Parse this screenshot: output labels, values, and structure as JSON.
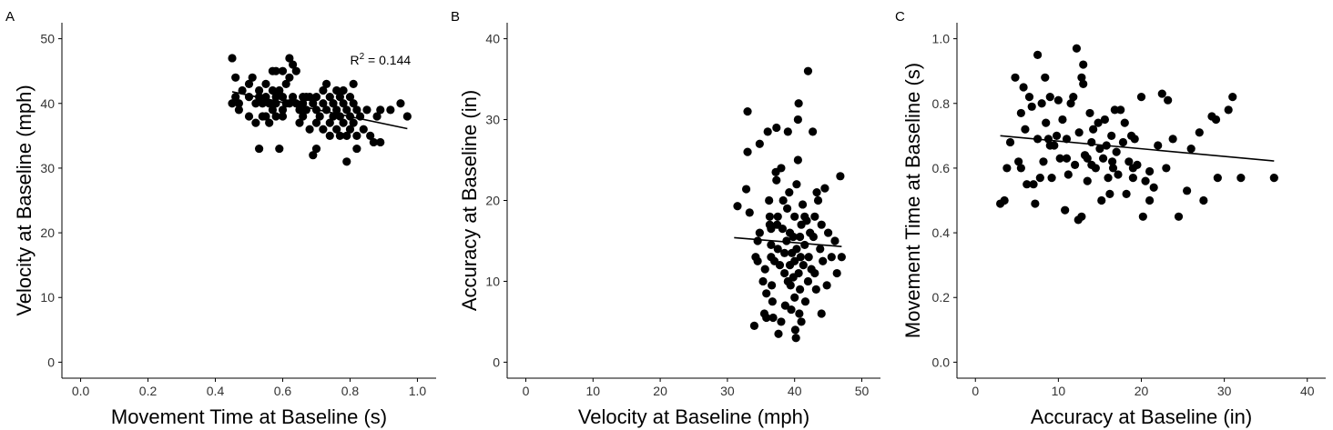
{
  "chart_data": [
    {
      "type": "scatter",
      "panel": "A",
      "xlabel": "Movement Time at Baseline (s)",
      "ylabel": "Velocity at Baseline (mph)",
      "xlim": [
        0.0,
        1.0
      ],
      "ylim": [
        0,
        50
      ],
      "xticks": [
        "0.0",
        "0.2",
        "0.4",
        "0.6",
        "0.8",
        "1.0"
      ],
      "yticks": [
        "0",
        "10",
        "20",
        "30",
        "40",
        "50"
      ],
      "annotation": {
        "base": "R",
        "sup": "2",
        "rest": " = 0.144",
        "x": 0.8,
        "y": 46
      },
      "trend": {
        "x": [
          0.45,
          0.97
        ],
        "y": [
          41.8,
          36.1
        ]
      },
      "points": [
        [
          0.45,
          47.0
        ],
        [
          0.45,
          40.0
        ],
        [
          0.46,
          44.0
        ],
        [
          0.46,
          41.0
        ],
        [
          0.47,
          39.0
        ],
        [
          0.48,
          42.0
        ],
        [
          0.5,
          41.0
        ],
        [
          0.5,
          38.0
        ],
        [
          0.5,
          43.0
        ],
        [
          0.51,
          44.0
        ],
        [
          0.52,
          40.0
        ],
        [
          0.52,
          37.0
        ],
        [
          0.53,
          42.0
        ],
        [
          0.53,
          41.0
        ],
        [
          0.53,
          33.0
        ],
        [
          0.54,
          40.0
        ],
        [
          0.55,
          43.0
        ],
        [
          0.55,
          41.0
        ],
        [
          0.55,
          38.0
        ],
        [
          0.56,
          40.0
        ],
        [
          0.56,
          37.0
        ],
        [
          0.57,
          42.0
        ],
        [
          0.57,
          39.0
        ],
        [
          0.57,
          45.0
        ],
        [
          0.58,
          41.0
        ],
        [
          0.58,
          40.0
        ],
        [
          0.58,
          38.0
        ],
        [
          0.58,
          45.0
        ],
        [
          0.59,
          42.0
        ],
        [
          0.59,
          33.0
        ],
        [
          0.6,
          45.0
        ],
        [
          0.6,
          41.0
        ],
        [
          0.6,
          39.0
        ],
        [
          0.6,
          38.0
        ],
        [
          0.61,
          43.0
        ],
        [
          0.61,
          40.0
        ],
        [
          0.62,
          44.0
        ],
        [
          0.62,
          47.0
        ],
        [
          0.62,
          40.0
        ],
        [
          0.63,
          46.0
        ],
        [
          0.63,
          41.0
        ],
        [
          0.64,
          45.0
        ],
        [
          0.64,
          40.0
        ],
        [
          0.65,
          39.0
        ],
        [
          0.65,
          37.0
        ],
        [
          0.66,
          40.0
        ],
        [
          0.66,
          38.0
        ],
        [
          0.67,
          41.0
        ],
        [
          0.67,
          39.0
        ],
        [
          0.68,
          41.0
        ],
        [
          0.68,
          36.0
        ],
        [
          0.69,
          40.0
        ],
        [
          0.69,
          32.0
        ],
        [
          0.7,
          41.0
        ],
        [
          0.7,
          39.0
        ],
        [
          0.7,
          37.0
        ],
        [
          0.7,
          33.0
        ],
        [
          0.71,
          38.0
        ],
        [
          0.72,
          40.0
        ],
        [
          0.72,
          36.0
        ],
        [
          0.73,
          43.0
        ],
        [
          0.73,
          39.0
        ],
        [
          0.74,
          41.0
        ],
        [
          0.74,
          37.0
        ],
        [
          0.74,
          35.0
        ],
        [
          0.75,
          40.0
        ],
        [
          0.75,
          38.0
        ],
        [
          0.76,
          42.0
        ],
        [
          0.76,
          39.0
        ],
        [
          0.76,
          36.0
        ],
        [
          0.77,
          41.0
        ],
        [
          0.77,
          38.0
        ],
        [
          0.77,
          35.0
        ],
        [
          0.78,
          42.0
        ],
        [
          0.78,
          40.0
        ],
        [
          0.78,
          37.0
        ],
        [
          0.79,
          39.0
        ],
        [
          0.79,
          35.0
        ],
        [
          0.79,
          31.0
        ],
        [
          0.8,
          41.0
        ],
        [
          0.8,
          38.0
        ],
        [
          0.8,
          36.0
        ],
        [
          0.81,
          43.0
        ],
        [
          0.81,
          40.0
        ],
        [
          0.81,
          37.0
        ],
        [
          0.82,
          39.0
        ],
        [
          0.82,
          35.0
        ],
        [
          0.82,
          33.0
        ],
        [
          0.83,
          38.0
        ],
        [
          0.84,
          36.0
        ],
        [
          0.85,
          39.0
        ],
        [
          0.86,
          35.0
        ],
        [
          0.87,
          34.0
        ],
        [
          0.88,
          38.0
        ],
        [
          0.89,
          34.0
        ],
        [
          0.89,
          39.0
        ],
        [
          0.92,
          39.0
        ],
        [
          0.95,
          40.0
        ],
        [
          0.97,
          38.0
        ],
        [
          0.47,
          40.0
        ],
        [
          0.54,
          38.0
        ],
        [
          0.66,
          41.0
        ],
        [
          0.72,
          42.0
        ],
        [
          0.75,
          40.0
        ]
      ]
    },
    {
      "type": "scatter",
      "panel": "B",
      "xlabel": "Velocity at Baseline (mph)",
      "ylabel": "Accuracy at Baseline (in)",
      "xlim": [
        0,
        50
      ],
      "ylim": [
        0,
        40
      ],
      "xticks": [
        "0",
        "10",
        "20",
        "30",
        "40",
        "50"
      ],
      "yticks": [
        "0",
        "10",
        "20",
        "30",
        "40"
      ],
      "trend": {
        "x": [
          31,
          47
        ],
        "y": [
          15.4,
          14.3
        ]
      },
      "points": [
        [
          31.5,
          19.3
        ],
        [
          32.8,
          21.4
        ],
        [
          33.0,
          31.0
        ],
        [
          33.0,
          26.0
        ],
        [
          33.3,
          18.5
        ],
        [
          34.0,
          4.5
        ],
        [
          34.2,
          13.0
        ],
        [
          34.5,
          12.5
        ],
        [
          34.5,
          15.0
        ],
        [
          34.8,
          27.0
        ],
        [
          35.3,
          10.0
        ],
        [
          35.5,
          6.0
        ],
        [
          35.6,
          11.5
        ],
        [
          35.8,
          5.5
        ],
        [
          36.0,
          28.5
        ],
        [
          36.2,
          20.0
        ],
        [
          36.3,
          18.0
        ],
        [
          36.3,
          17.0
        ],
        [
          36.5,
          14.5
        ],
        [
          36.5,
          16.5
        ],
        [
          36.6,
          9.5
        ],
        [
          36.7,
          7.5
        ],
        [
          36.8,
          5.5
        ],
        [
          37.0,
          12.5
        ],
        [
          37.2,
          23.5
        ],
        [
          37.3,
          22.5
        ],
        [
          37.3,
          29.0
        ],
        [
          37.4,
          17.0
        ],
        [
          37.5,
          18.0
        ],
        [
          37.5,
          14.0
        ],
        [
          37.6,
          3.5
        ],
        [
          37.8,
          12.0
        ],
        [
          38.0,
          24.0
        ],
        [
          38.2,
          16.5
        ],
        [
          38.3,
          20.0
        ],
        [
          38.5,
          11.0
        ],
        [
          38.5,
          13.5
        ],
        [
          38.6,
          7.0
        ],
        [
          38.8,
          15.0
        ],
        [
          38.9,
          19.0
        ],
        [
          39.0,
          28.5
        ],
        [
          39.2,
          21.0
        ],
        [
          39.3,
          16.0
        ],
        [
          39.3,
          12.0
        ],
        [
          39.4,
          9.5
        ],
        [
          39.5,
          6.5
        ],
        [
          39.6,
          13.5
        ],
        [
          39.8,
          15.5
        ],
        [
          39.8,
          10.5
        ],
        [
          40.0,
          18.0
        ],
        [
          40.0,
          12.5
        ],
        [
          40.0,
          8.0
        ],
        [
          40.1,
          4.0
        ],
        [
          40.2,
          3.0
        ],
        [
          40.3,
          22.0
        ],
        [
          40.3,
          14.0
        ],
        [
          40.5,
          30.0
        ],
        [
          40.5,
          25.0
        ],
        [
          40.6,
          32.0
        ],
        [
          40.6,
          11.0
        ],
        [
          40.7,
          6.0
        ],
        [
          40.8,
          15.5
        ],
        [
          40.8,
          9.0
        ],
        [
          40.9,
          13.0
        ],
        [
          41.0,
          17.0
        ],
        [
          41.2,
          19.5
        ],
        [
          41.3,
          12.0
        ],
        [
          41.5,
          14.5
        ],
        [
          41.6,
          7.5
        ],
        [
          41.8,
          17.5
        ],
        [
          42.0,
          36.0
        ],
        [
          42.0,
          10.0
        ],
        [
          42.1,
          13.0
        ],
        [
          42.3,
          16.0
        ],
        [
          42.5,
          11.5
        ],
        [
          42.7,
          28.5
        ],
        [
          42.8,
          15.5
        ],
        [
          43.0,
          18.0
        ],
        [
          43.2,
          9.0
        ],
        [
          43.3,
          21.0
        ],
        [
          43.5,
          20.0
        ],
        [
          43.8,
          14.0
        ],
        [
          44.0,
          6.0
        ],
        [
          44.2,
          12.5
        ],
        [
          44.5,
          21.5
        ],
        [
          44.8,
          9.5
        ],
        [
          45.0,
          16.0
        ],
        [
          45.5,
          13.0
        ],
        [
          46.0,
          15.0
        ],
        [
          46.3,
          11.0
        ],
        [
          46.8,
          23.0
        ],
        [
          47.0,
          13.0
        ],
        [
          34.8,
          16.0
        ],
        [
          35.8,
          8.5
        ],
        [
          36.5,
          13.0
        ],
        [
          38.0,
          5.0
        ],
        [
          39.0,
          10.0
        ],
        [
          41.0,
          5.0
        ],
        [
          41.5,
          18.0
        ],
        [
          43.0,
          11.0
        ],
        [
          44.0,
          17.0
        ]
      ]
    },
    {
      "type": "scatter",
      "panel": "C",
      "xlabel": "Accuracy at Baseline (in)",
      "ylabel": "Movement Time at Baseline (s)",
      "xlim": [
        0,
        40
      ],
      "ylim": [
        0.0,
        1.0
      ],
      "xticks": [
        "0",
        "10",
        "20",
        "30",
        "40"
      ],
      "yticks": [
        "0.0",
        "0.2",
        "0.4",
        "0.6",
        "0.8",
        "1.0"
      ],
      "trend": {
        "x": [
          3,
          36
        ],
        "y": [
          0.7,
          0.622
        ]
      },
      "points": [
        [
          3.0,
          0.49
        ],
        [
          3.5,
          0.5
        ],
        [
          3.8,
          0.6
        ],
        [
          4.2,
          0.68
        ],
        [
          4.8,
          0.88
        ],
        [
          5.2,
          0.62
        ],
        [
          5.5,
          0.77
        ],
        [
          5.8,
          0.85
        ],
        [
          6.0,
          0.72
        ],
        [
          6.2,
          0.55
        ],
        [
          6.5,
          0.82
        ],
        [
          6.8,
          0.79
        ],
        [
          7.0,
          0.55
        ],
        [
          7.2,
          0.49
        ],
        [
          7.5,
          0.69
        ],
        [
          7.5,
          0.95
        ],
        [
          7.8,
          0.57
        ],
        [
          8.0,
          0.8
        ],
        [
          8.2,
          0.62
        ],
        [
          8.4,
          0.88
        ],
        [
          8.5,
          0.74
        ],
        [
          8.8,
          0.69
        ],
        [
          9.0,
          0.82
        ],
        [
          9.2,
          0.57
        ],
        [
          9.5,
          0.67
        ],
        [
          9.8,
          0.7
        ],
        [
          10.0,
          0.81
        ],
        [
          10.2,
          0.63
        ],
        [
          10.5,
          0.75
        ],
        [
          10.8,
          0.47
        ],
        [
          11.0,
          0.63
        ],
        [
          11.2,
          0.58
        ],
        [
          11.5,
          0.8
        ],
        [
          11.8,
          0.82
        ],
        [
          12.0,
          0.61
        ],
        [
          12.2,
          0.97
        ],
        [
          12.4,
          0.44
        ],
        [
          12.5,
          0.71
        ],
        [
          12.8,
          0.88
        ],
        [
          12.8,
          0.45
        ],
        [
          13.0,
          0.92
        ],
        [
          13.0,
          0.86
        ],
        [
          13.2,
          0.64
        ],
        [
          13.5,
          0.56
        ],
        [
          13.8,
          0.77
        ],
        [
          14.0,
          0.68
        ],
        [
          14.2,
          0.72
        ],
        [
          14.5,
          0.6
        ],
        [
          14.8,
          0.74
        ],
        [
          15.0,
          0.66
        ],
        [
          15.2,
          0.5
        ],
        [
          15.4,
          0.63
        ],
        [
          15.6,
          0.75
        ],
        [
          15.8,
          0.67
        ],
        [
          16.0,
          0.57
        ],
        [
          16.2,
          0.52
        ],
        [
          16.4,
          0.7
        ],
        [
          16.6,
          0.6
        ],
        [
          16.8,
          0.78
        ],
        [
          17.0,
          0.65
        ],
        [
          17.2,
          0.58
        ],
        [
          17.5,
          0.78
        ],
        [
          17.8,
          0.68
        ],
        [
          18.0,
          0.74
        ],
        [
          18.2,
          0.52
        ],
        [
          18.5,
          0.62
        ],
        [
          18.8,
          0.7
        ],
        [
          19.0,
          0.57
        ],
        [
          19.2,
          0.69
        ],
        [
          19.5,
          0.61
        ],
        [
          20.0,
          0.82
        ],
        [
          20.2,
          0.45
        ],
        [
          20.5,
          0.56
        ],
        [
          21.0,
          0.59
        ],
        [
          21.5,
          0.54
        ],
        [
          22.0,
          0.67
        ],
        [
          22.5,
          0.83
        ],
        [
          23.0,
          0.6
        ],
        [
          23.2,
          0.81
        ],
        [
          23.8,
          0.69
        ],
        [
          24.5,
          0.45
        ],
        [
          25.5,
          0.53
        ],
        [
          27.0,
          0.71
        ],
        [
          27.5,
          0.5
        ],
        [
          28.5,
          0.76
        ],
        [
          29.0,
          0.75
        ],
        [
          29.2,
          0.57
        ],
        [
          30.5,
          0.78
        ],
        [
          31.0,
          0.82
        ],
        [
          32.0,
          0.57
        ],
        [
          36.0,
          0.57
        ],
        [
          5.5,
          0.6
        ],
        [
          9.0,
          0.67
        ],
        [
          14.0,
          0.61
        ],
        [
          16.5,
          0.62
        ],
        [
          19.0,
          0.6
        ],
        [
          21.0,
          0.5
        ],
        [
          26.0,
          0.66
        ],
        [
          11.0,
          0.69
        ],
        [
          13.5,
          0.63
        ]
      ]
    }
  ]
}
